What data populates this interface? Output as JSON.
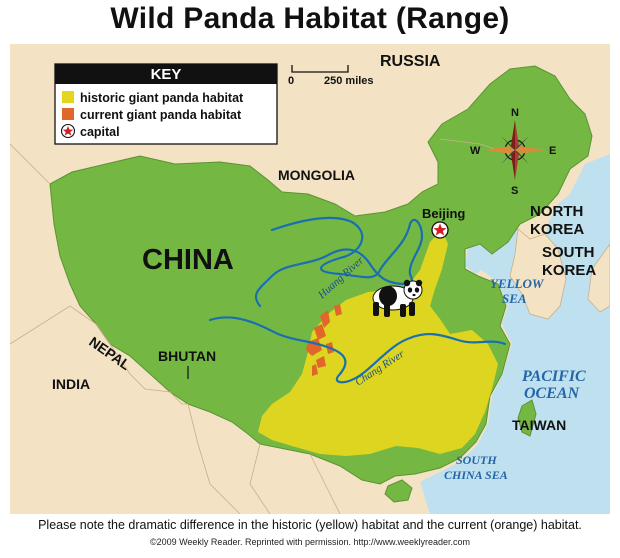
{
  "title": "Wild Panda Habitat (Range)",
  "key": {
    "heading": "KEY",
    "items": [
      {
        "label": "historic giant panda habitat",
        "color": "#e3d61d"
      },
      {
        "label": "current giant panda habitat",
        "color": "#e0662a"
      },
      {
        "label": "capital",
        "icon": "star-in-circle-icon"
      }
    ]
  },
  "scale": {
    "zero": "0",
    "distance": "250 miles"
  },
  "compass": {
    "n": "N",
    "s": "S",
    "e": "E",
    "w": "W"
  },
  "labels": {
    "russia": "RUSSIA",
    "mongolia": "MONGOLIA",
    "china": "CHINA",
    "beijing": "Beijing",
    "north_korea_1": "NORTH",
    "north_korea_2": "KOREA",
    "south_korea_1": "SOUTH",
    "south_korea_2": "KOREA",
    "nepal": "NEPAL",
    "bhutan": "BHUTAN",
    "india": "INDIA",
    "taiwan": "TAIWAN",
    "huang_river": "Huang River",
    "chang_river": "Chang River",
    "yellow_sea_1": "YELLOW",
    "yellow_sea_2": "SEA",
    "pacific_1": "PACIFIC",
    "pacific_2": "OCEAN",
    "south_china_1": "SOUTH",
    "south_china_2": "CHINA SEA"
  },
  "colors": {
    "china": "#74b843",
    "land": "#f3e2c4",
    "water": "#bfe0ef",
    "river": "#1a6fb0",
    "historic": "#e3d61d",
    "current": "#e0662a"
  },
  "caption": "Please note the dramatic difference in the historic (yellow) habitat and the current (orange) habitat.",
  "copyright": "©2009 Weekly Reader. Reprinted with permission. http://www.weeklyreader.com"
}
